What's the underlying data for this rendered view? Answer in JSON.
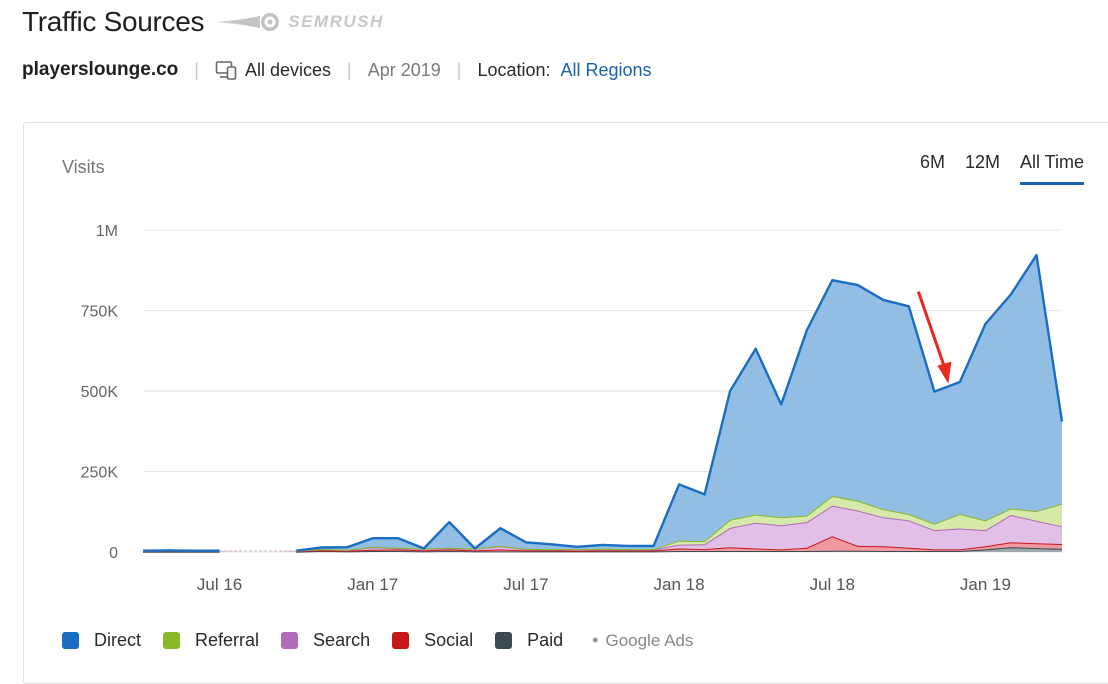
{
  "header": {
    "title": "Traffic Sources",
    "brand_name": "SEMRUSH"
  },
  "meta": {
    "domain": "playerslounge.co",
    "devices": "All devices",
    "date": "Apr 2019",
    "location_label": "Location:",
    "location_value": "All Regions"
  },
  "range_tabs": [
    {
      "label": "6M",
      "active": false
    },
    {
      "label": "12M",
      "active": false
    },
    {
      "label": "All Time",
      "active": true
    }
  ],
  "legend": {
    "items": [
      {
        "label": "Direct",
        "color": "#1a6dc0"
      },
      {
        "label": "Referral",
        "color": "#8ab926"
      },
      {
        "label": "Search",
        "color": "#b36bb8"
      },
      {
        "label": "Social",
        "color": "#c8161d"
      },
      {
        "label": "Paid",
        "color": "#3b4a52"
      }
    ],
    "paid_note": "Google Ads"
  },
  "chart_data": {
    "type": "area",
    "stacked": true,
    "ylabel": "Visits",
    "ylim": [
      0,
      1000000
    ],
    "yticks": [
      0,
      250000,
      500000,
      750000,
      1000000
    ],
    "ytick_labels": [
      "0",
      "250K",
      "500K",
      "750K",
      "1M"
    ],
    "xticks": [
      "Jul 16",
      "Jan 17",
      "Jul 17",
      "Jan 18",
      "Jul 18",
      "Jan 19"
    ],
    "grid": true,
    "annotation": "red arrow pointing to the dip in Nov 2018",
    "x": [
      "Apr 2016",
      "May 2016",
      "Jun 2016",
      "Jul 2016",
      "Aug 2016",
      "Sep 2016",
      "Oct 2016",
      "Nov 2016",
      "Dec 2016",
      "Jan 2017",
      "Feb 2017",
      "Mar 2017",
      "Apr 2017",
      "May 2017",
      "Jun 2017",
      "Jul 2017",
      "Aug 2017",
      "Sep 2017",
      "Oct 2017",
      "Nov 2017",
      "Dec 2017",
      "Jan 2018",
      "Feb 2018",
      "Mar 2018",
      "Apr 2018",
      "May 2018",
      "Jun 2018",
      "Jul 2018",
      "Aug 2018",
      "Sep 2018",
      "Oct 2018",
      "Nov 2018",
      "Dec 2018",
      "Jan 2019",
      "Feb 2019",
      "Mar 2019",
      "Apr 2019"
    ],
    "missing": [
      "Aug 2016",
      "Sep 2016"
    ],
    "series": [
      {
        "name": "Paid",
        "values": [
          1000,
          1000,
          1000,
          1000,
          0,
          0,
          1000,
          3000,
          2000,
          3000,
          3000,
          2000,
          3000,
          2000,
          2000,
          2000,
          2000,
          2000,
          2000,
          2000,
          2000,
          3000,
          3000,
          3000,
          3000,
          3000,
          3000,
          4000,
          4000,
          3000,
          3000,
          3000,
          3000,
          8000,
          15000,
          12000,
          10000
        ]
      },
      {
        "name": "Social",
        "values": [
          2000,
          3000,
          2000,
          2000,
          0,
          0,
          2000,
          2000,
          2000,
          4000,
          5000,
          3000,
          5000,
          3000,
          6000,
          3000,
          3000,
          2000,
          3000,
          3000,
          3000,
          8000,
          6000,
          12000,
          8000,
          5000,
          10000,
          45000,
          15000,
          15000,
          10000,
          5000,
          5000,
          10000,
          15000,
          15000,
          15000
        ]
      },
      {
        "name": "Search",
        "values": [
          1000,
          1000,
          1000,
          1000,
          0,
          0,
          1000,
          3000,
          2000,
          8000,
          4000,
          5000,
          4000,
          5000,
          10000,
          4000,
          3000,
          4000,
          4000,
          3000,
          3000,
          12000,
          15000,
          60000,
          80000,
          75000,
          80000,
          95000,
          110000,
          90000,
          85000,
          60000,
          65000,
          50000,
          85000,
          70000,
          55000
        ]
      },
      {
        "name": "Referral",
        "values": [
          0,
          0,
          0,
          0,
          0,
          0,
          0,
          1000,
          1000,
          1000,
          1000,
          1000,
          1000,
          1000,
          1000,
          1000,
          1000,
          1000,
          1000,
          1000,
          1000,
          12000,
          10000,
          25000,
          25000,
          25000,
          20000,
          30000,
          30000,
          25000,
          20000,
          20000,
          45000,
          30000,
          20000,
          30000,
          70000
        ]
      },
      {
        "name": "Direct",
        "values": [
          0,
          0,
          0,
          0,
          0,
          0,
          0,
          5000,
          8000,
          27000,
          30000,
          0,
          80000,
          0,
          55000,
          20000,
          15000,
          7000,
          12000,
          10000,
          10000,
          175000,
          145000,
          400000,
          515000,
          350000,
          575000,
          670000,
          670000,
          650000,
          645000,
          410000,
          410000,
          610000,
          665000,
          795000,
          255000
        ]
      }
    ]
  }
}
